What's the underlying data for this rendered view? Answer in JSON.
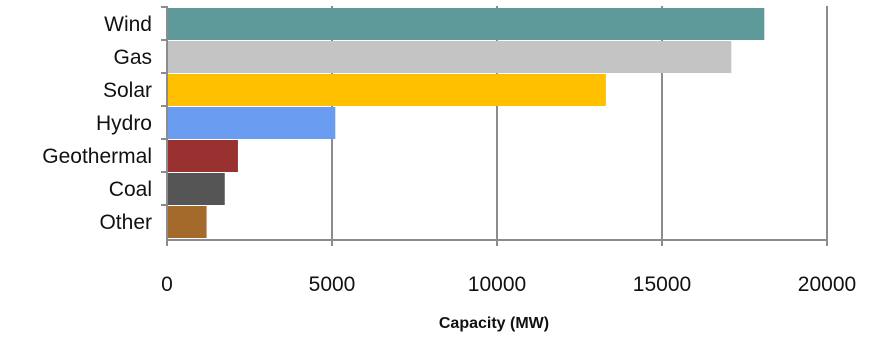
{
  "chart_data": {
    "type": "bar",
    "orientation": "horizontal",
    "title": "",
    "xlabel": "Capacity (MW)",
    "ylabel": "",
    "xlim": [
      0,
      20000
    ],
    "x_ticks": [
      0,
      5000,
      10000,
      15000,
      20000
    ],
    "grid": true,
    "legend": "none",
    "categories": [
      "Wind",
      "Gas",
      "Solar",
      "Hydro",
      "Geothermal",
      "Coal",
      "Other"
    ],
    "values": [
      18100,
      17100,
      13300,
      5100,
      2150,
      1750,
      1200
    ],
    "colors": [
      "#5f9a9a",
      "#c4c4c4",
      "#ffc000",
      "#6a9cf2",
      "#9a3131",
      "#555555",
      "#a46a2c"
    ]
  }
}
